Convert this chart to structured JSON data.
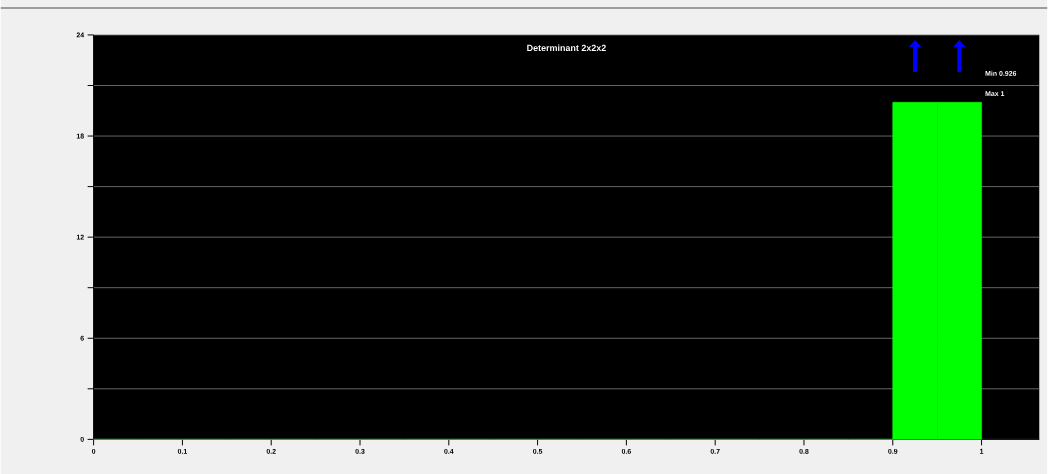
{
  "chart_data": {
    "type": "histogram",
    "title": "Determinant 2x2x2",
    "bins": [
      0,
      0.05,
      0.1,
      0.15,
      0.2,
      0.25,
      0.3,
      0.35,
      0.4,
      0.45,
      0.5,
      0.55,
      0.6,
      0.65,
      0.7,
      0.75,
      0.8,
      0.85,
      0.9,
      0.95,
      1
    ],
    "values": [
      0,
      0,
      0,
      0,
      0,
      0,
      0,
      0,
      0,
      0,
      0,
      0,
      0,
      0,
      0,
      0,
      0,
      0,
      20,
      20
    ],
    "color": "#00ff00",
    "xlim": [
      0,
      1.065
    ],
    "ylim": [
      0,
      24
    ],
    "xticks": [
      0,
      0.1,
      0.2,
      0.3,
      0.4,
      0.5,
      0.6,
      0.7,
      0.8,
      0.9,
      1
    ],
    "yticks": [
      0,
      {
        "value": 3,
        "label": null
      },
      6,
      {
        "value": 9,
        "label": null
      },
      12,
      {
        "value": 15,
        "label": null
      },
      18,
      {
        "value": 21,
        "label": null
      },
      24
    ],
    "grid": "y",
    "annotations": [
      "Min 0.926",
      "Max 1"
    ]
  }
}
